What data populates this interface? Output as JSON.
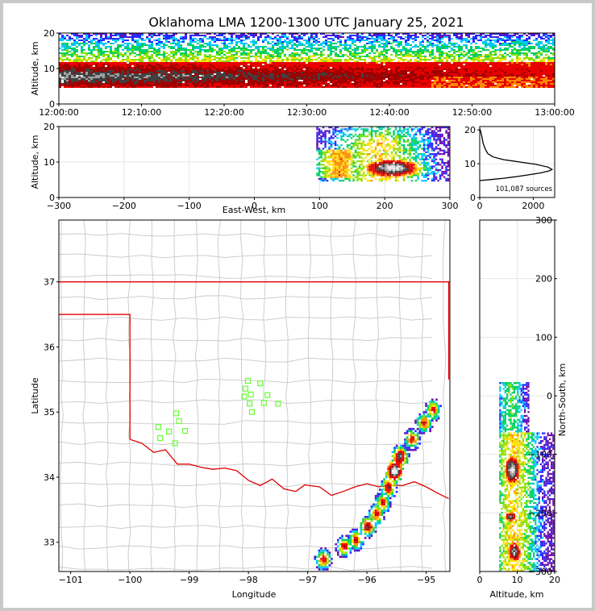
{
  "title": "Oklahoma LMA 1200-1300 UTC January 25, 2021",
  "colors": {
    "state_border": "#e00000",
    "county_line": "#c8c8c8",
    "station": "#66ff33",
    "grid": "#e6e6e6"
  },
  "chart_data": [
    {
      "id": "time_height",
      "type": "heatmap",
      "ylabel": "Altitude, km",
      "xlabel": "",
      "x_ticks": [
        "12:00:00",
        "12:10:00",
        "12:20:00",
        "12:30:00",
        "12:40:00",
        "12:50:00",
        "13:00:00"
      ],
      "xlim_minutes": [
        0,
        60
      ],
      "y_ticks": [
        "0",
        "10",
        "20"
      ],
      "ylim": [
        0,
        20
      ],
      "note_core_altitude_km": [
        5,
        12
      ]
    },
    {
      "id": "ew_altitude",
      "type": "heatmap",
      "ylabel": "Altitude, km",
      "xlabel": "East-West, km",
      "x_ticks": [
        "−300",
        "−200",
        "−100",
        "0",
        "100",
        "200",
        "300"
      ],
      "xlim": [
        -300,
        300
      ],
      "y_ticks": [
        "0",
        "10",
        "20"
      ],
      "ylim": [
        0,
        20
      ]
    },
    {
      "id": "altitude_histogram",
      "type": "line",
      "annotation": "101,087 sources",
      "x_ticks": [
        "0",
        "2000"
      ],
      "xlim": [
        0,
        2800
      ],
      "y_ticks": [
        "0",
        "10",
        "20"
      ],
      "ylim": [
        0,
        21
      ],
      "profile": [
        [
          0,
          5
        ],
        [
          400,
          5.3
        ],
        [
          900,
          5.7
        ],
        [
          1400,
          6.2
        ],
        [
          1900,
          6.8
        ],
        [
          2300,
          7.3
        ],
        [
          2600,
          7.9
        ],
        [
          2700,
          8.3
        ],
        [
          2550,
          9.0
        ],
        [
          2100,
          9.8
        ],
        [
          1500,
          10.5
        ],
        [
          900,
          11.2
        ],
        [
          500,
          12.0
        ],
        [
          300,
          13.0
        ],
        [
          200,
          14.5
        ],
        [
          130,
          16.0
        ],
        [
          80,
          18.0
        ],
        [
          40,
          19.4
        ],
        [
          10,
          20.3
        ]
      ]
    },
    {
      "id": "plan_map",
      "type": "heatmap",
      "xlabel": "Longitude",
      "ylabel": "Latitude",
      "x_ticks": [
        "−101",
        "−100",
        "−99",
        "−98",
        "−97",
        "−96",
        "−95"
      ],
      "xlim": [
        -101.2,
        -94.6
      ],
      "y_ticks": [
        "33",
        "34",
        "35",
        "36",
        "37"
      ],
      "ylim": [
        32.55,
        37.95
      ],
      "stations": [
        [
          -98.01,
          35.48
        ],
        [
          -98.05,
          35.36
        ],
        [
          -98.07,
          35.24
        ],
        [
          -97.96,
          35.27
        ],
        [
          -97.8,
          35.44
        ],
        [
          -97.98,
          35.13
        ],
        [
          -97.94,
          35.0
        ],
        [
          -97.74,
          35.14
        ],
        [
          -97.68,
          35.26
        ],
        [
          -97.5,
          35.13
        ],
        [
          -99.22,
          34.98
        ],
        [
          -99.17,
          34.86
        ],
        [
          -99.52,
          34.77
        ],
        [
          -99.34,
          34.7
        ],
        [
          -99.07,
          34.71
        ],
        [
          -99.49,
          34.6
        ],
        [
          -99.24,
          34.52
        ]
      ]
    },
    {
      "id": "ns_altitude",
      "type": "heatmap",
      "xlabel": "Altitude, km",
      "ylabel": "North-South, km",
      "x_ticks": [
        "0",
        "10",
        "20"
      ],
      "xlim": [
        0,
        20
      ],
      "y_ticks": [
        "−300",
        "−200",
        "−100",
        "0",
        "100",
        "200",
        "300"
      ],
      "ylim": [
        -300,
        300
      ]
    }
  ]
}
